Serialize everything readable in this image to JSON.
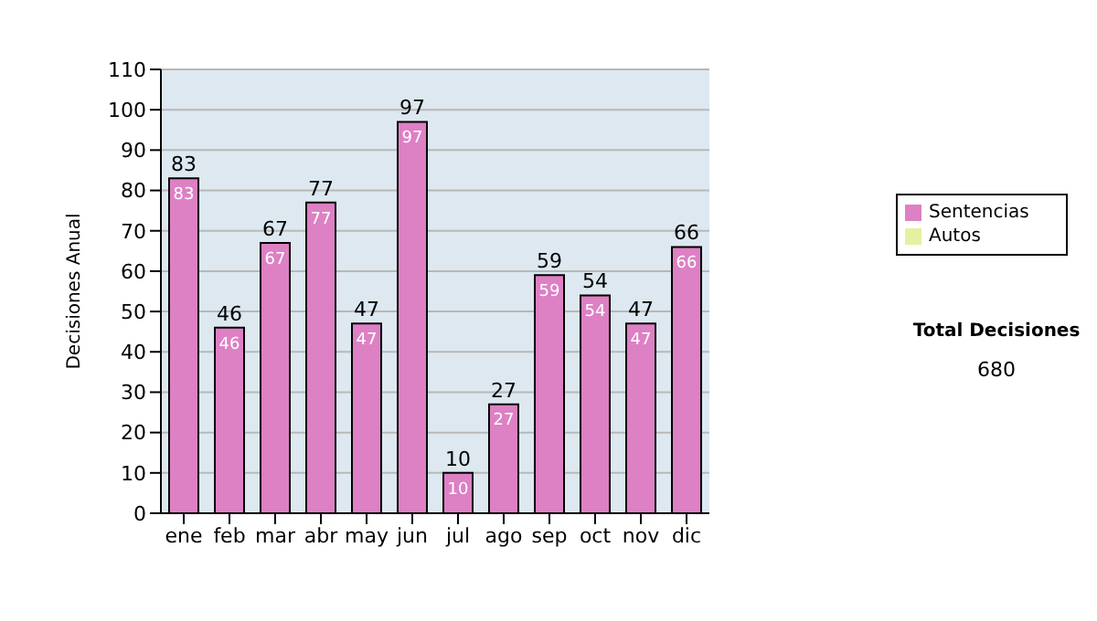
{
  "chart_data": {
    "type": "bar",
    "categories": [
      "ene",
      "feb",
      "mar",
      "abr",
      "may",
      "jun",
      "jul",
      "ago",
      "sep",
      "oct",
      "nov",
      "dic"
    ],
    "ylabel": "Decisiones Anual",
    "ylim": [
      0,
      110
    ],
    "yticks": [
      0,
      10,
      20,
      30,
      40,
      50,
      60,
      70,
      80,
      90,
      100,
      110
    ],
    "grid": "y",
    "legend": "right",
    "stacked": true,
    "series": [
      {
        "name": "Sentencias",
        "color": "#dd80c4",
        "values": [
          83,
          46,
          67,
          77,
          47,
          97,
          10,
          27,
          59,
          54,
          47,
          66
        ],
        "value_labels": [
          "83",
          "46",
          "67",
          "77",
          "47",
          "97",
          "10",
          "27",
          "59",
          "54",
          "47",
          "66"
        ]
      },
      {
        "name": "Autos",
        "color": "#e6f0a0",
        "values": [
          0,
          0,
          0,
          0,
          0,
          0,
          0,
          0,
          0,
          0,
          0,
          0
        ]
      }
    ],
    "totals": [
      "83",
      "46",
      "67",
      "77",
      "47",
      "97",
      "10",
      "27",
      "59",
      "54",
      "47",
      "66"
    ],
    "annotations": [
      "Total Decisiones",
      "680"
    ]
  }
}
